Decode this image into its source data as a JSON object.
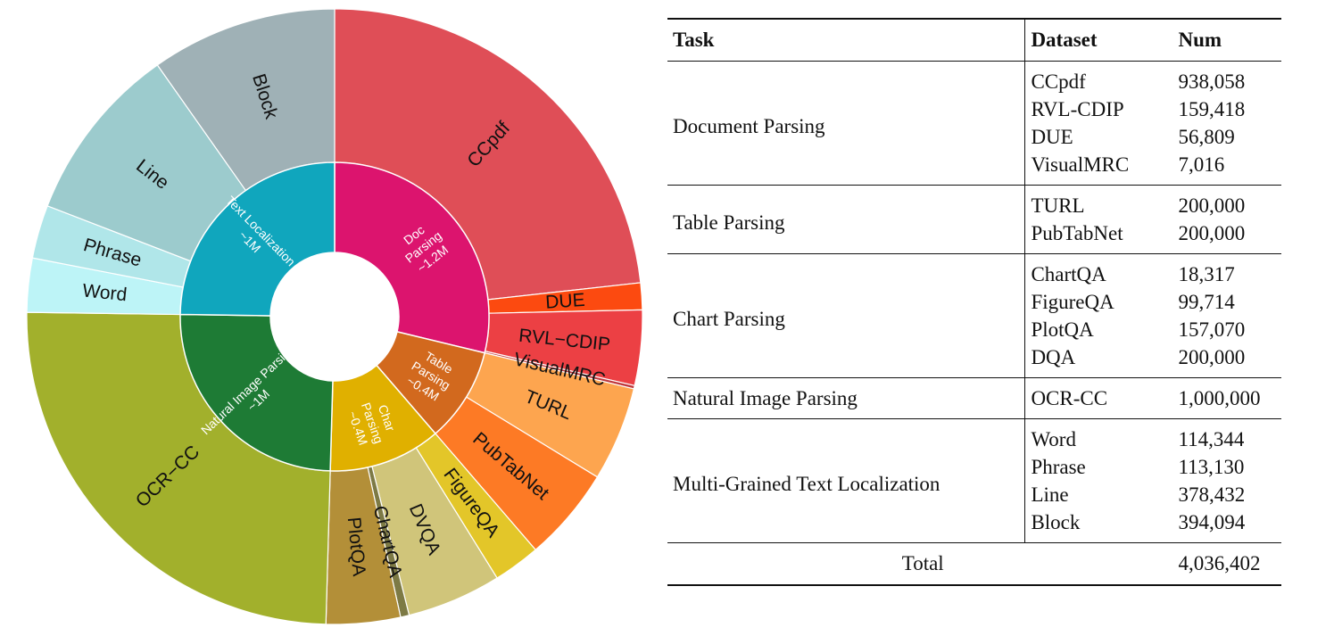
{
  "chart_data": [
    {
      "type": "sunburst",
      "inner": [
        {
          "name": "Doc Parsing",
          "sub": "~1.2M",
          "color": "#dc146e"
        },
        {
          "name": "Table Parsing",
          "sub": "~0.4M",
          "color": "#d2691e"
        },
        {
          "name": "Char Parsing",
          "sub": "~0.4M",
          "color": "#e0b000"
        },
        {
          "name": "Natural Image Parsing",
          "sub": "~1M",
          "color": "#1e7b35"
        },
        {
          "name": "Text Localization",
          "sub": "~1M",
          "color": "#10a6bd"
        }
      ],
      "outer": [
        {
          "name": "CCpdf",
          "parent": "Doc Parsing",
          "value": 938058,
          "color": "#df4e57"
        },
        {
          "name": "DUE",
          "parent": "Doc Parsing",
          "value": 56809,
          "color": "#fc4a10"
        },
        {
          "name": "RVL−CDIP",
          "parent": "Doc Parsing",
          "value": 159418,
          "color": "#ec4044"
        },
        {
          "name": "VisualMRC",
          "parent": "Doc Parsing",
          "value": 7016,
          "color": "#c0393d"
        },
        {
          "name": "TURL",
          "parent": "Table Parsing",
          "value": 200000,
          "color": "#fda54f"
        },
        {
          "name": "PubTabNet",
          "parent": "Table Parsing",
          "value": 200000,
          "color": "#fd7a25"
        },
        {
          "name": "FigureQA",
          "parent": "Char Parsing",
          "value": 99714,
          "color": "#e3c629"
        },
        {
          "name": "DVQA",
          "parent": "Char Parsing",
          "value": 200000,
          "color": "#d0c57a"
        },
        {
          "name": "ChartQA",
          "parent": "Char Parsing",
          "value": 18317,
          "color": "#7d7a45"
        },
        {
          "name": "PlotQA",
          "parent": "Char Parsing",
          "value": 157070,
          "color": "#b38f38"
        },
        {
          "name": "OCR−CC",
          "parent": "Natural Image Parsing",
          "value": 1000000,
          "color": "#a2b02c"
        },
        {
          "name": "Word",
          "parent": "Text Localization",
          "value": 114344,
          "color": "#bdf4f7"
        },
        {
          "name": "Phrase",
          "parent": "Text Localization",
          "value": 113130,
          "color": "#b0e6e9"
        },
        {
          "name": "Line",
          "parent": "Text Localization",
          "value": 378432,
          "color": "#9ccbcd"
        },
        {
          "name": "Block",
          "parent": "Text Localization",
          "value": 394094,
          "color": "#9fb1b6"
        }
      ]
    },
    {
      "type": "table",
      "headers": [
        "Task",
        "Dataset",
        "Num"
      ],
      "groups": [
        {
          "task": "Document Parsing",
          "rows": [
            {
              "dataset": "CCpdf",
              "num": "938,058"
            },
            {
              "dataset": "RVL-CDIP",
              "num": "159,418"
            },
            {
              "dataset": "DUE",
              "num": "56,809"
            },
            {
              "dataset": "VisualMRC",
              "num": "7,016"
            }
          ]
        },
        {
          "task": "Table Parsing",
          "rows": [
            {
              "dataset": "TURL",
              "num": "200,000"
            },
            {
              "dataset": "PubTabNet",
              "num": "200,000"
            }
          ]
        },
        {
          "task": "Chart Parsing",
          "rows": [
            {
              "dataset": "ChartQA",
              "num": "18,317"
            },
            {
              "dataset": "FigureQA",
              "num": "99,714"
            },
            {
              "dataset": "PlotQA",
              "num": "157,070"
            },
            {
              "dataset": "DQA",
              "num": "200,000"
            }
          ]
        },
        {
          "task": "Natural Image Parsing",
          "rows": [
            {
              "dataset": "OCR-CC",
              "num": "1,000,000"
            }
          ]
        },
        {
          "task": "Multi-Grained Text Localization",
          "rows": [
            {
              "dataset": "Word",
              "num": "114,344"
            },
            {
              "dataset": "Phrase",
              "num": "113,130"
            },
            {
              "dataset": "Line",
              "num": "378,432"
            },
            {
              "dataset": "Block",
              "num": "394,094"
            }
          ]
        }
      ],
      "total": {
        "label": "Total",
        "num": "4,036,402"
      }
    }
  ]
}
